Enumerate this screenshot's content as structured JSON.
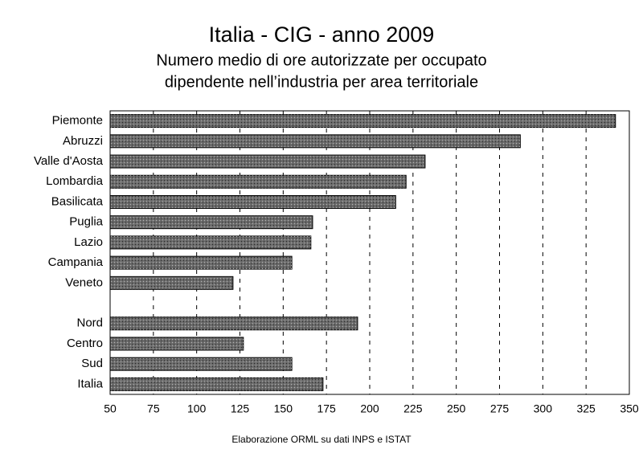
{
  "chart_data": {
    "type": "bar",
    "orientation": "horizontal",
    "title": "Italia - CIG - anno 2009",
    "subtitle": [
      "Numero medio di ore autorizzate per occupato",
      "dipendente nell’industria per area territoriale"
    ],
    "categories": [
      "Piemonte",
      "Abruzzi",
      "Valle d'Aosta",
      "Lombardia",
      "Basilicata",
      "Puglia",
      "Lazio",
      "Campania",
      "Veneto",
      null,
      "Nord",
      "Centro",
      "Sud",
      "Italia"
    ],
    "values": [
      342,
      287,
      232,
      221,
      215,
      167,
      166,
      155,
      121,
      null,
      193,
      127,
      155,
      173
    ],
    "color": "#6b6b6b",
    "xlim": [
      50,
      350
    ],
    "xticks": [
      50,
      75,
      100,
      125,
      150,
      175,
      200,
      225,
      250,
      275,
      300,
      325,
      350
    ],
    "grid": true,
    "note": "Elaborazione ORML su dati INPS e ISTAT"
  }
}
